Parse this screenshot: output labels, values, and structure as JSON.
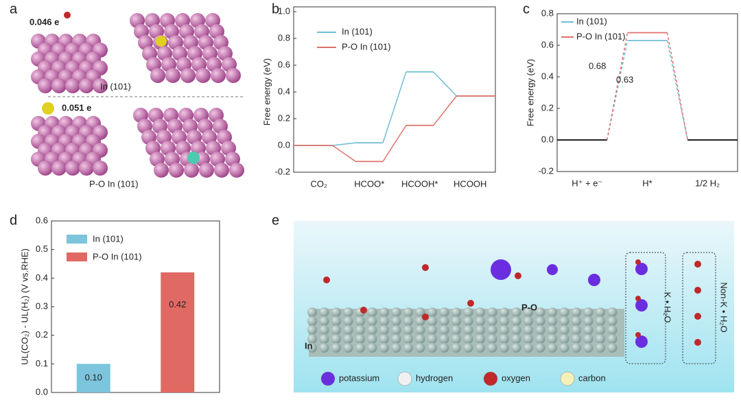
{
  "labels": [
    "a",
    "b",
    "c",
    "d",
    "e"
  ],
  "panel_a": {
    "charge_1": "0.046 e",
    "surface_1": "In (101)",
    "charge_2": "0.051 e",
    "surface_2": "P-O In (101)"
  },
  "chart_data": [
    {
      "type": "step",
      "ylabel": "Free energy (eV)",
      "categories": [
        "CO₂",
        "HCOO*",
        "HCOOH*",
        "HCOOH"
      ],
      "series": [
        {
          "name": "In (101)",
          "color": "#6fbdd3",
          "values": [
            0,
            0.02,
            0.55,
            0.37
          ]
        },
        {
          "name": "P-O In (101)",
          "color": "#e0706a",
          "values": [
            0,
            -0.12,
            0.15,
            0.37
          ]
        }
      ],
      "ylim": [
        -0.2,
        1.0
      ],
      "yticks": [
        -0.2,
        {
          "value": 0,
          "label": "0.0"
        },
        0.2,
        0.4,
        0.6,
        0.8,
        {
          "value": 1,
          "label": "1.0"
        }
      ],
      "legend": "upper left"
    },
    {
      "type": "step",
      "dashed": true,
      "ylabel": "Free energy (eV)",
      "categories": [
        "H⁺ + e⁻",
        "H*",
        "1/2 H₂"
      ],
      "series": [
        {
          "name": "In (101)",
          "color": "#6fbdd3",
          "values": [
            0,
            0.63,
            0
          ]
        },
        {
          "name": "P-O In (101)",
          "color": "#e0706a",
          "values": [
            0,
            0.68,
            0
          ]
        }
      ],
      "annotations": [
        {
          "text": "0.68",
          "color": "#e0706a"
        },
        {
          "text": "0.63",
          "color": "#6fbdd3"
        }
      ],
      "ylim": [
        -0.2,
        0.8
      ],
      "yticks": [
        -0.2,
        {
          "value": 0,
          "label": "0.0"
        },
        0.2,
        0.4,
        0.6,
        0.8
      ],
      "legend": "upper left"
    },
    {
      "type": "bar",
      "ylabel": "UL(CO₂) - UL(H₂) (V vs.RHE)",
      "categories": [
        "In (101)",
        "P-O In (101)"
      ],
      "colors": [
        "#7cc5dc",
        "#e06a63"
      ],
      "values": [
        0.1,
        0.42
      ],
      "value_labels": [
        "0.10",
        "0.42"
      ],
      "ylim": [
        0,
        0.6
      ],
      "yticks": [
        {
          "value": 0,
          "label": "0.0"
        },
        0.1,
        0.2,
        0.3,
        0.4,
        0.5,
        0.6
      ],
      "legend": "upper left"
    }
  ],
  "panel_e": {
    "site": "P-O",
    "substrate": "In",
    "k_water": "K • H₂O",
    "nonk_water": "Non-K • H₂O",
    "legend": [
      {
        "name": "potassium",
        "color": "#6a2ee0"
      },
      {
        "name": "hydrogen",
        "color": "#f0f0f0"
      },
      {
        "name": "oxygen",
        "color": "#c0282a"
      },
      {
        "name": "carbon",
        "color": "#f5f0b8"
      }
    ]
  }
}
